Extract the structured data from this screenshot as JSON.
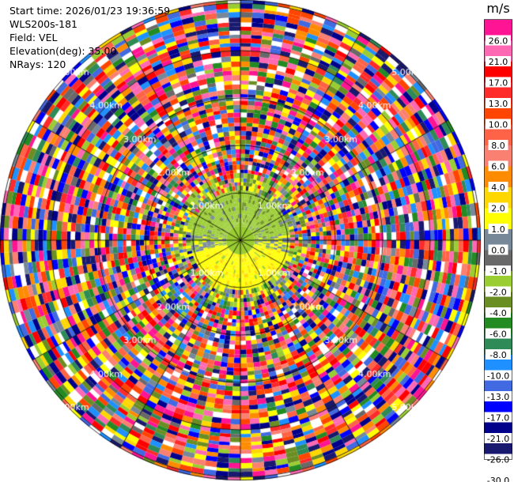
{
  "header": {
    "start_time": "Start time: 2026/01/23 19:36:59",
    "station": "WLS200s-181",
    "field": "Field: VEL",
    "elevation": "Elevation(deg): 35.00",
    "nrays": "NRays: 120"
  },
  "chart_data": {
    "type": "heatmap",
    "subtype": "polar PPI scan",
    "field": "VEL",
    "nrays": 120,
    "range_ring_labels": [
      "1.00km",
      "2.00km",
      "3.00km",
      "4.00km",
      "5.00km"
    ],
    "range_rings_km": [
      1,
      2,
      3,
      4,
      5
    ],
    "grid": true,
    "colorbar": {
      "unit": "m/s",
      "placement": "right",
      "tick_labels": [
        "26.0",
        "21.0",
        "17.0",
        "13.0",
        "10.0",
        "8.0",
        "6.0",
        "4.0",
        "2.0",
        "1.0",
        "0.0",
        "-1.0",
        "-2.0",
        "-4.0",
        "-6.0",
        "-8.0",
        "-10.0",
        "-13.0",
        "-17.0",
        "-21.0",
        "-26.0",
        "-30.0"
      ],
      "colors": [
        "#ff1493",
        "#ff69b4",
        "#ff0000",
        "#ff2a2a",
        "#ff4500",
        "#ff6347",
        "#fa8072",
        "#ff8c00",
        "#ffd700",
        "#ffff00",
        "#778899",
        "#696969",
        "#9acd32",
        "#6b8e23",
        "#228b22",
        "#2e8b57",
        "#1e90ff",
        "#4169e1",
        "#0000ff",
        "#00008b",
        "#191970"
      ],
      "color_values": [
        26,
        21,
        17,
        13,
        10,
        8,
        6,
        4,
        2,
        1,
        0,
        -1,
        -2,
        -4,
        -6,
        -8,
        -10,
        -13,
        -17,
        -21,
        -26
      ]
    },
    "inner_region_colors": [
      "#9acd32",
      "#ffff00",
      "#6b8e23",
      "#778899"
    ]
  }
}
